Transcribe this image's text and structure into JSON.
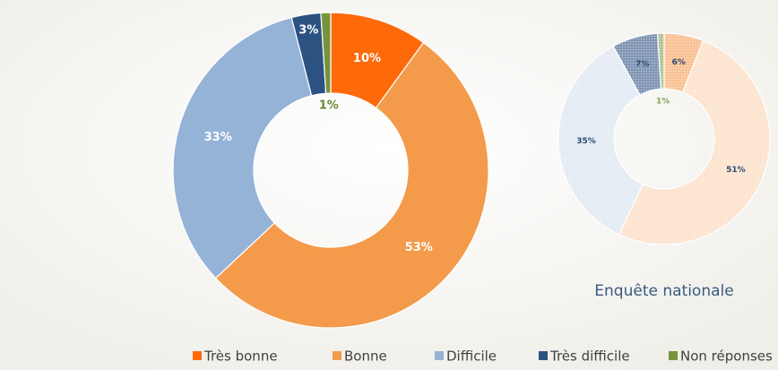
{
  "chart_data": [
    {
      "type": "donut",
      "categories": [
        "Très bonne",
        "Bonne",
        "Difficile",
        "Très difficile",
        "Non réponses"
      ],
      "values": [
        10,
        53,
        33,
        3,
        1
      ],
      "value_labels": [
        "10%",
        "53%",
        "33%",
        "3%",
        "1%"
      ],
      "colors": [
        "#fe6a0a",
        "#f39b4b",
        "#95b3d7",
        "#2c5282",
        "#77933c"
      ],
      "legend": "bottom"
    },
    {
      "type": "donut",
      "title": "Enquête nationale",
      "categories": [
        "Très bonne",
        "Bonne",
        "Difficile",
        "Très difficile",
        "Non réponses"
      ],
      "values": [
        6,
        51,
        35,
        7,
        1
      ],
      "value_labels": [
        "6%",
        "51%",
        "35%",
        "7%",
        "1%"
      ],
      "colors": [
        "#f7a25c",
        "#fbd6b6",
        "#d5e0ee",
        "#3d5f8c",
        "#8aa35a"
      ]
    }
  ]
}
